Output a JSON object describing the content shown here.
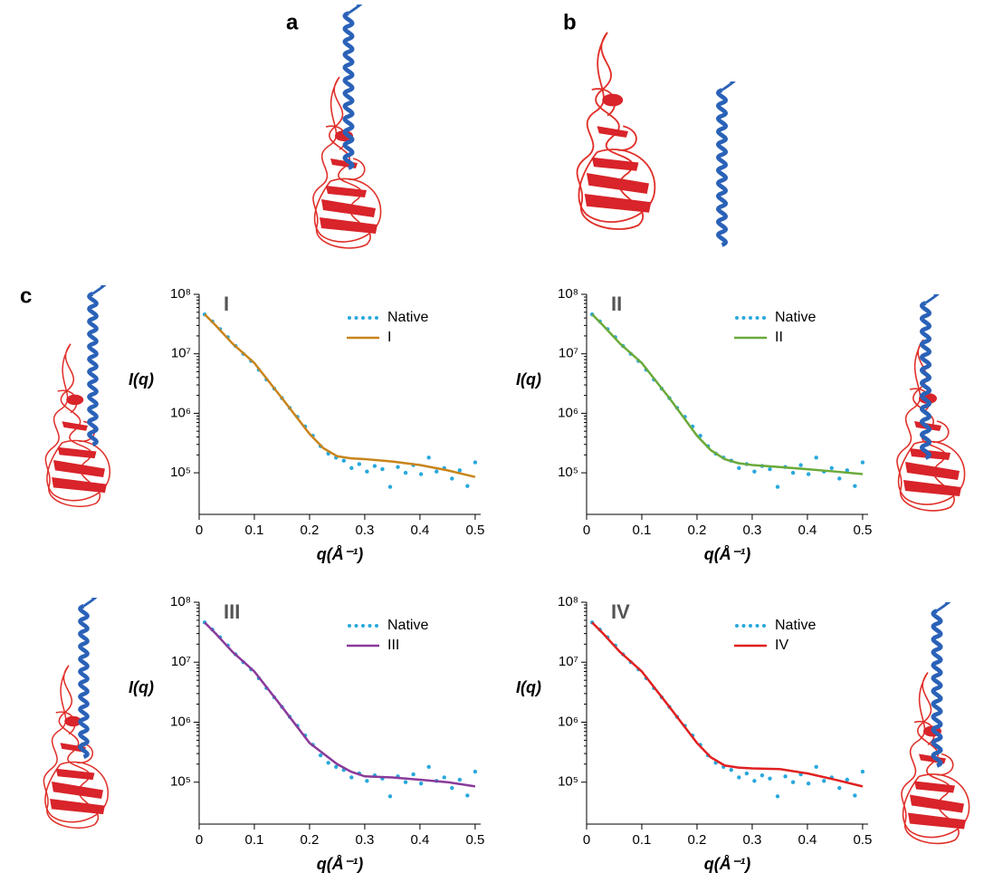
{
  "panel_labels": [
    "a",
    "b",
    "c"
  ],
  "chart_data": [
    {
      "type": "line",
      "label": "I",
      "ylabel": "I(q)",
      "xlabel": "q(Å⁻¹)",
      "log_y": true,
      "legend": "upper right",
      "xlim": [
        0,
        0.51
      ],
      "ylim": [
        20000,
        100000000
      ],
      "xticks": [
        0,
        0.1,
        0.2,
        0.3,
        0.4,
        0.5
      ],
      "yticks": [
        {
          "value": 100000,
          "label": "10⁵"
        },
        {
          "value": 1000000,
          "label": "10⁶"
        },
        {
          "value": 10000000,
          "label": "10⁷"
        },
        {
          "value": 100000000,
          "label": "10⁸"
        }
      ],
      "series": [
        {
          "name": "Native",
          "color": "#29a8dc",
          "style": "dots",
          "x": [
            0.01,
            0.024,
            0.038,
            0.052,
            0.066,
            0.08,
            0.094,
            0.108,
            0.122,
            0.136,
            0.15,
            0.164,
            0.178,
            0.192,
            0.206,
            0.22,
            0.234,
            0.248,
            0.262,
            0.276,
            0.29,
            0.304,
            0.318,
            0.332,
            0.346,
            0.36,
            0.374,
            0.388,
            0.402,
            0.416,
            0.43,
            0.444,
            0.458,
            0.472,
            0.486,
            0.5
          ],
          "values": [
            46000000,
            35000000,
            26000000,
            19000000,
            13500000,
            10000000,
            7600000,
            5400000,
            3700000,
            2600000,
            1800000,
            1230000,
            870000,
            600000,
            420000,
            280000,
            210000,
            180000,
            160000,
            120000,
            140000,
            105000,
            130000,
            115000,
            58000,
            125000,
            100000,
            135000,
            95000,
            180000,
            105000,
            120000,
            80000,
            110000,
            60000,
            150000
          ]
        },
        {
          "name": "I",
          "color": "#c8841a",
          "style": "line",
          "x": [
            0.01,
            0.03,
            0.06,
            0.1,
            0.15,
            0.2,
            0.225,
            0.25,
            0.275,
            0.3,
            0.35,
            0.4,
            0.45,
            0.5
          ],
          "values": [
            46000000,
            30000000,
            15000000,
            7000000,
            1800000,
            450000,
            260000,
            190000,
            175000,
            170000,
            155000,
            135000,
            110000,
            85000
          ]
        }
      ]
    },
    {
      "type": "line",
      "label": "II",
      "ylabel": "I(q)",
      "xlabel": "q(Å⁻¹)",
      "log_y": true,
      "legend": "upper right",
      "xlim": [
        0,
        0.51
      ],
      "ylim": [
        20000,
        100000000
      ],
      "xticks": [
        0,
        0.1,
        0.2,
        0.3,
        0.4,
        0.5
      ],
      "yticks": [
        {
          "value": 100000,
          "label": "10⁵"
        },
        {
          "value": 1000000,
          "label": "10⁶"
        },
        {
          "value": 10000000,
          "label": "10⁷"
        },
        {
          "value": 100000000,
          "label": "10⁸"
        }
      ],
      "series": [
        {
          "name": "Native",
          "color": "#29a8dc",
          "style": "dots",
          "x": [
            0.01,
            0.024,
            0.038,
            0.052,
            0.066,
            0.08,
            0.094,
            0.108,
            0.122,
            0.136,
            0.15,
            0.164,
            0.178,
            0.192,
            0.206,
            0.22,
            0.234,
            0.248,
            0.262,
            0.276,
            0.29,
            0.304,
            0.318,
            0.332,
            0.346,
            0.36,
            0.374,
            0.388,
            0.402,
            0.416,
            0.43,
            0.444,
            0.458,
            0.472,
            0.486,
            0.5
          ],
          "values": [
            46000000,
            35000000,
            26000000,
            19000000,
            13500000,
            10000000,
            7600000,
            5400000,
            3700000,
            2600000,
            1800000,
            1230000,
            870000,
            600000,
            420000,
            280000,
            210000,
            180000,
            160000,
            120000,
            140000,
            105000,
            130000,
            115000,
            58000,
            125000,
            100000,
            135000,
            95000,
            180000,
            105000,
            120000,
            80000,
            110000,
            60000,
            150000
          ]
        },
        {
          "name": "II",
          "color": "#6aaa3a",
          "style": "line",
          "x": [
            0.01,
            0.03,
            0.06,
            0.1,
            0.15,
            0.2,
            0.225,
            0.25,
            0.275,
            0.3,
            0.35,
            0.4,
            0.45,
            0.5
          ],
          "values": [
            46000000,
            30000000,
            15000000,
            7000000,
            1800000,
            420000,
            240000,
            170000,
            145000,
            135000,
            125000,
            115000,
            105000,
            95000
          ]
        }
      ]
    },
    {
      "type": "line",
      "label": "III",
      "ylabel": "I(q)",
      "xlabel": "q(Å⁻¹)",
      "log_y": true,
      "legend": "upper right",
      "xlim": [
        0,
        0.51
      ],
      "ylim": [
        20000,
        100000000
      ],
      "xticks": [
        0,
        0.1,
        0.2,
        0.3,
        0.4,
        0.5
      ],
      "yticks": [
        {
          "value": 100000,
          "label": "10⁵"
        },
        {
          "value": 1000000,
          "label": "10⁶"
        },
        {
          "value": 10000000,
          "label": "10⁷"
        },
        {
          "value": 100000000,
          "label": "10⁸"
        }
      ],
      "series": [
        {
          "name": "Native",
          "color": "#29a8dc",
          "style": "dots",
          "x": [
            0.01,
            0.024,
            0.038,
            0.052,
            0.066,
            0.08,
            0.094,
            0.108,
            0.122,
            0.136,
            0.15,
            0.164,
            0.178,
            0.192,
            0.206,
            0.22,
            0.234,
            0.248,
            0.262,
            0.276,
            0.29,
            0.304,
            0.318,
            0.332,
            0.346,
            0.36,
            0.374,
            0.388,
            0.402,
            0.416,
            0.43,
            0.444,
            0.458,
            0.472,
            0.486,
            0.5
          ],
          "values": [
            46000000,
            35000000,
            26000000,
            19000000,
            13500000,
            10000000,
            7600000,
            5400000,
            3700000,
            2600000,
            1800000,
            1230000,
            870000,
            600000,
            420000,
            280000,
            210000,
            180000,
            160000,
            120000,
            140000,
            105000,
            130000,
            115000,
            58000,
            125000,
            100000,
            135000,
            95000,
            180000,
            105000,
            120000,
            80000,
            110000,
            60000,
            150000
          ]
        },
        {
          "name": "III",
          "color": "#8a3a9a",
          "style": "line",
          "x": [
            0.01,
            0.03,
            0.06,
            0.1,
            0.15,
            0.2,
            0.225,
            0.25,
            0.275,
            0.3,
            0.35,
            0.4,
            0.45,
            0.5
          ],
          "values": [
            46000000,
            30000000,
            15000000,
            7000000,
            1800000,
            450000,
            300000,
            200000,
            150000,
            125000,
            120000,
            110000,
            100000,
            85000
          ]
        }
      ]
    },
    {
      "type": "line",
      "label": "IV",
      "ylabel": "I(q)",
      "xlabel": "q(Å⁻¹)",
      "log_y": true,
      "legend": "upper right",
      "xlim": [
        0,
        0.51
      ],
      "ylim": [
        20000,
        100000000
      ],
      "xticks": [
        0,
        0.1,
        0.2,
        0.3,
        0.4,
        0.5
      ],
      "yticks": [
        {
          "value": 100000,
          "label": "10⁵"
        },
        {
          "value": 1000000,
          "label": "10⁶"
        },
        {
          "value": 10000000,
          "label": "10⁷"
        },
        {
          "value": 100000000,
          "label": "10⁸"
        }
      ],
      "series": [
        {
          "name": "Native",
          "color": "#29a8dc",
          "style": "dots",
          "x": [
            0.01,
            0.024,
            0.038,
            0.052,
            0.066,
            0.08,
            0.094,
            0.108,
            0.122,
            0.136,
            0.15,
            0.164,
            0.178,
            0.192,
            0.206,
            0.22,
            0.234,
            0.248,
            0.262,
            0.276,
            0.29,
            0.304,
            0.318,
            0.332,
            0.346,
            0.36,
            0.374,
            0.388,
            0.402,
            0.416,
            0.43,
            0.444,
            0.458,
            0.472,
            0.486,
            0.5
          ],
          "values": [
            46000000,
            35000000,
            26000000,
            19000000,
            13500000,
            10000000,
            7600000,
            5400000,
            3700000,
            2600000,
            1800000,
            1230000,
            870000,
            600000,
            420000,
            280000,
            210000,
            180000,
            160000,
            120000,
            140000,
            105000,
            130000,
            115000,
            58000,
            125000,
            100000,
            135000,
            95000,
            180000,
            105000,
            120000,
            80000,
            110000,
            60000,
            150000
          ]
        },
        {
          "name": "IV",
          "color": "#e02020",
          "style": "line",
          "x": [
            0.01,
            0.03,
            0.06,
            0.1,
            0.15,
            0.2,
            0.225,
            0.25,
            0.275,
            0.3,
            0.35,
            0.4,
            0.45,
            0.5
          ],
          "values": [
            46000000,
            30000000,
            15000000,
            7000000,
            1800000,
            450000,
            260000,
            190000,
            175000,
            170000,
            165000,
            140000,
            110000,
            85000
          ]
        }
      ]
    }
  ]
}
